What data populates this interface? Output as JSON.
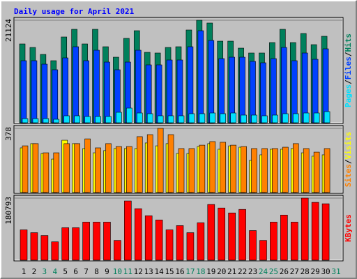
{
  "chart_data": [
    {
      "type": "bar",
      "title": "Daily usage for April 2021",
      "legend_separator": "/",
      "ylim": [
        0,
        21124
      ],
      "yticks": [
        21124
      ],
      "series": [
        {
          "name": "Hits",
          "color": "#00805c",
          "values": [
            16238,
            15520,
            14083,
            12789,
            17675,
            19256,
            16238,
            19256,
            15663,
            13508,
            17388,
            18968,
            14514,
            14370,
            15520,
            15663,
            19112,
            21124,
            20549,
            16813,
            16813,
            15376,
            14370,
            14370,
            16526,
            19256,
            16526,
            18394,
            16094,
            17819,
            null
          ]
        },
        {
          "name": "Files",
          "color": "#0040ff",
          "values": [
            12789,
            12789,
            12071,
            10921,
            13364,
            15663,
            12789,
            14945,
            12502,
            10921,
            12502,
            14945,
            11927,
            11927,
            12933,
            12933,
            15663,
            18968,
            16957,
            13220,
            13508,
            13508,
            12646,
            12358,
            13220,
            15520,
            12789,
            14370,
            13077,
            15232,
            null
          ]
        },
        {
          "name": "Pages",
          "color": "#00e0ff",
          "values": [
            862,
            862,
            862,
            719,
            1437,
            1437,
            1293,
            1293,
            1293,
            2156,
            3018,
            2012,
            1868,
            1437,
            1437,
            1437,
            1868,
            1868,
            2012,
            1868,
            2012,
            1581,
            1581,
            1437,
            1581,
            1868,
            1868,
            2012,
            2012,
            2299,
            null
          ]
        }
      ]
    },
    {
      "type": "bar",
      "ylim": [
        0,
        378
      ],
      "yticks": [
        378
      ],
      "series": [
        {
          "name": "Visits",
          "color": "#ffff00",
          "values": [
            263,
            288,
            230,
            197,
            308,
            288,
            259,
            234,
            247,
            259,
            259,
            259,
            292,
            275,
            288,
            230,
            230,
            271,
            288,
            255,
            275,
            267,
            189,
            222,
            255,
            255,
            259,
            234,
            214,
            222,
            null
          ]
        },
        {
          "name": "Sites",
          "color": "#ff8000",
          "values": [
            275,
            288,
            234,
            234,
            288,
            288,
            316,
            263,
            288,
            271,
            271,
            329,
            341,
            378,
            341,
            259,
            259,
            279,
            300,
            296,
            279,
            271,
            259,
            259,
            259,
            267,
            288,
            259,
            238,
            259,
            null
          ]
        }
      ]
    },
    {
      "type": "bar",
      "ylim": [
        0,
        180793
      ],
      "yticks": [
        180793
      ],
      "categories": [
        "1",
        "2",
        "3",
        "4",
        "5",
        "6",
        "7",
        "8",
        "9",
        "10",
        "11",
        "12",
        "13",
        "14",
        "15",
        "16",
        "17",
        "18",
        "19",
        "20",
        "21",
        "22",
        "23",
        "24",
        "25",
        "26",
        "27",
        "28",
        "29",
        "30",
        "31"
      ],
      "category_colors": [
        "#000000",
        "#000000",
        "#00805c",
        "#00805c",
        "#000000",
        "#000000",
        "#000000",
        "#000000",
        "#000000",
        "#00805c",
        "#00805c",
        "#000000",
        "#000000",
        "#000000",
        "#000000",
        "#000000",
        "#00805c",
        "#00805c",
        "#000000",
        "#000000",
        "#000000",
        "#000000",
        "#000000",
        "#00805c",
        "#00805c",
        "#000000",
        "#000000",
        "#000000",
        "#000000",
        "#000000",
        "#00805c"
      ],
      "series": [
        {
          "name": "KBytes",
          "color": "#ff0000",
          "values": [
            88322,
            80106,
            71890,
            53404,
            94484,
            94484,
            110916,
            110916,
            110916,
            57512,
            172536,
            149942,
            129402,
            117078,
            88322,
            100646,
            80106,
            108862,
            162266,
            151996,
            137618,
            147888,
            86268,
            57512,
            110916,
            131456,
            110916,
            180793,
            168428,
            164320,
            null
          ]
        }
      ]
    }
  ]
}
